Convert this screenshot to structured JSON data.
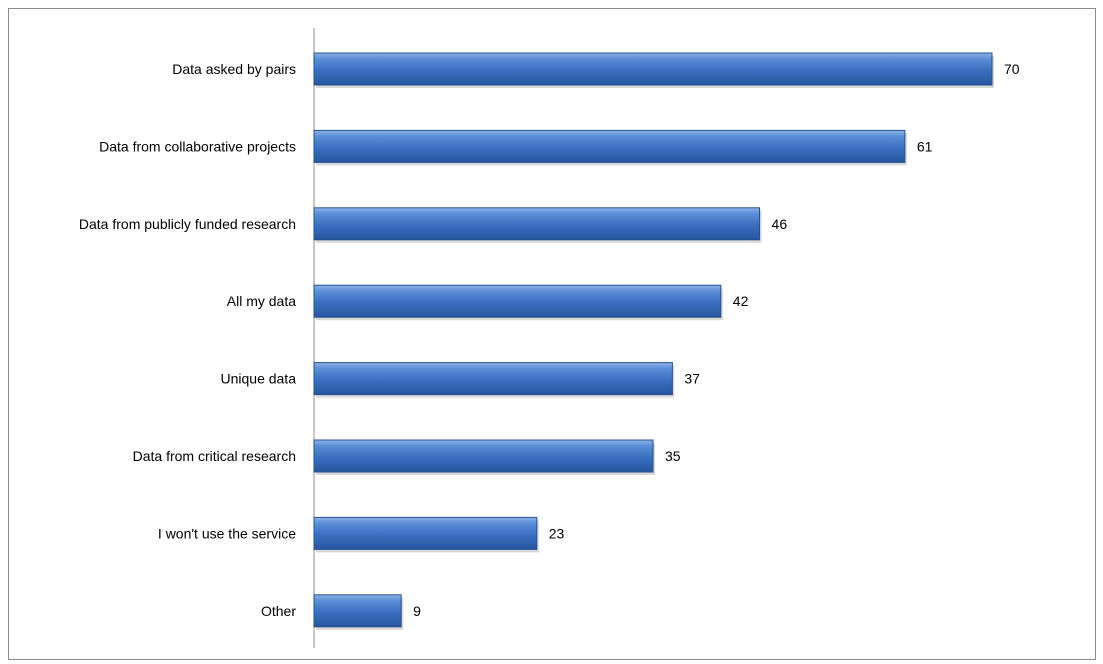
{
  "chart_data": {
    "type": "bar",
    "orientation": "horizontal",
    "title": "",
    "xlabel": "",
    "ylabel": "",
    "categories": [
      "Data asked by pairs",
      "Data from collaborative projects",
      "Data from publicly funded research",
      "All my data",
      "Unique data",
      "Data from critical research",
      "I won't use the service",
      "Other"
    ],
    "values": [
      70,
      61,
      46,
      42,
      37,
      35,
      23,
      9
    ],
    "data_labels": [
      "70",
      "61",
      "46",
      "42",
      "37",
      "35",
      "23",
      "9"
    ],
    "xlim": [
      0,
      70
    ],
    "grid": false,
    "legend": "none",
    "bar_color": "#3a6fc0"
  }
}
